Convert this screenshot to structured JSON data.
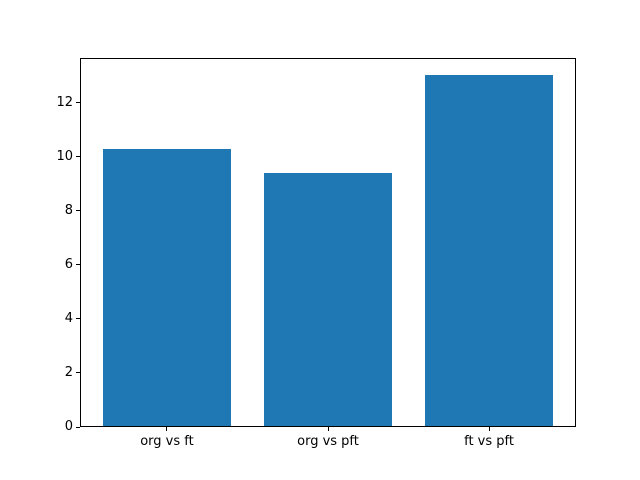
{
  "chart_data": {
    "type": "bar",
    "title": "",
    "xlabel": "",
    "ylabel": "",
    "categories": [
      "org vs ft",
      "org vs pft",
      "ft vs pft"
    ],
    "values": [
      10.25,
      9.35,
      13.0
    ],
    "yticks": [
      0,
      2,
      4,
      6,
      8,
      10,
      12
    ],
    "ylim": [
      0,
      13.65
    ],
    "grid": false,
    "legend": null,
    "bar_color": "#1f77b4",
    "spine_color": "#000000",
    "background_color": "#ffffff",
    "tick_label_color": "#000000"
  }
}
